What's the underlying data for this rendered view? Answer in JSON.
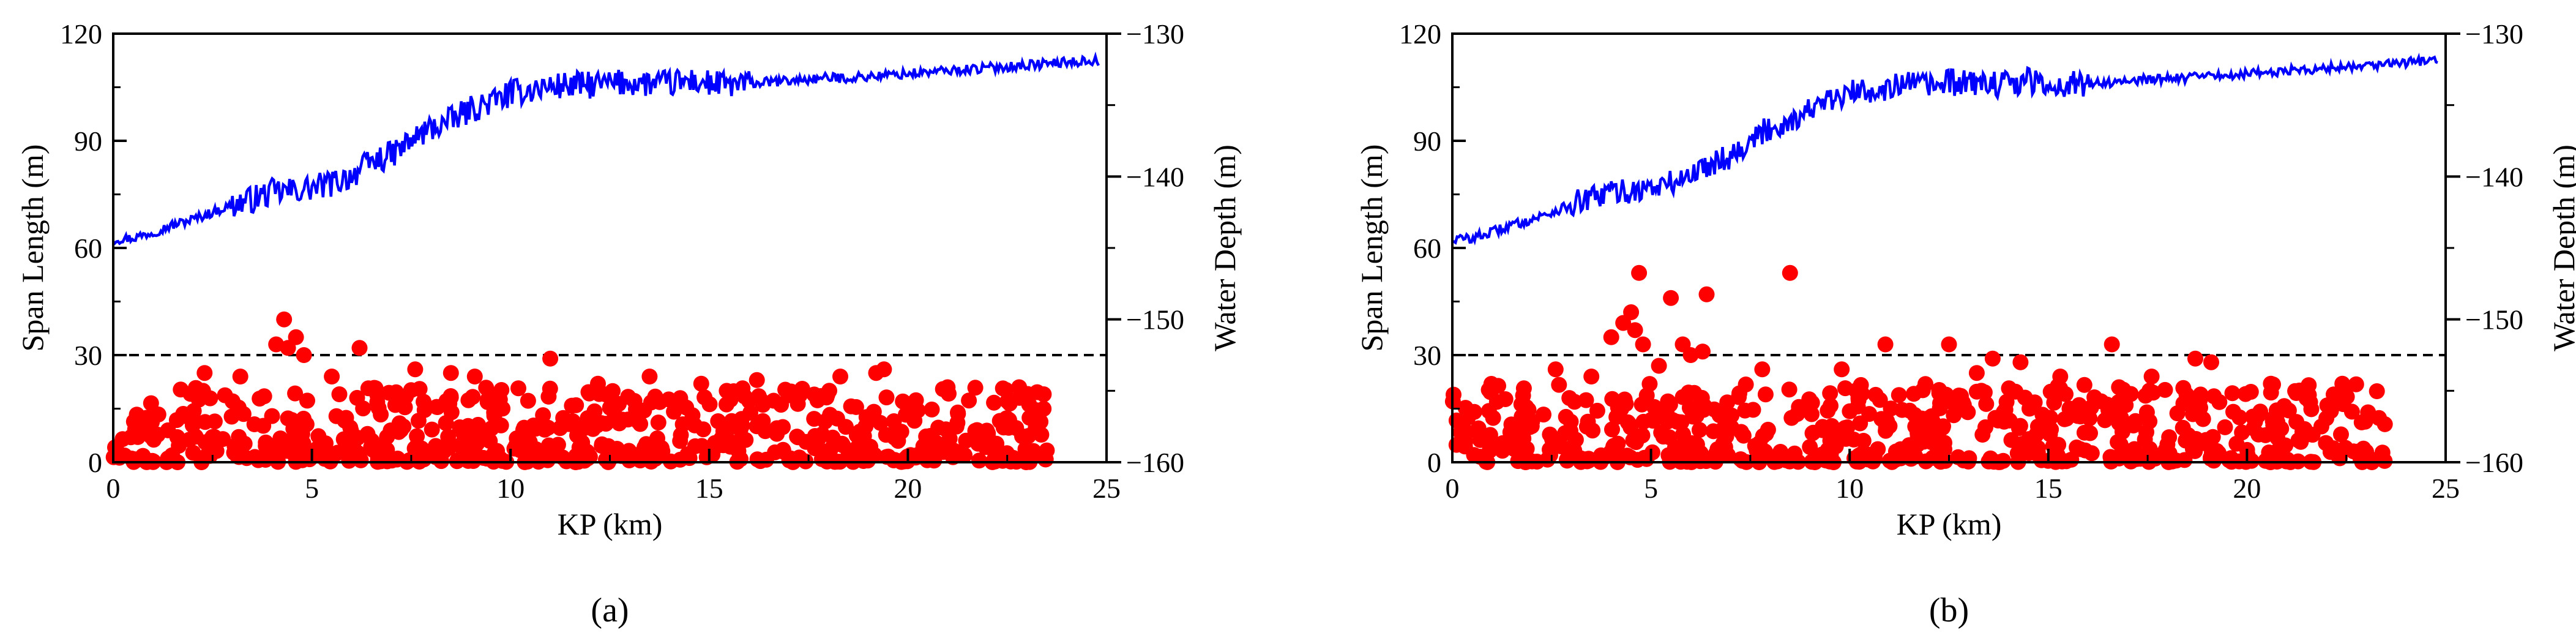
{
  "chart_data": [
    {
      "type": "scatter",
      "panel_label": "(a)",
      "xlabel": "KP (km)",
      "ylabel": "Span Length (m)",
      "y2label": "Water Depth (m)",
      "xlim": [
        0,
        25
      ],
      "ylim": [
        0,
        120
      ],
      "y2lim": [
        -160,
        -130
      ],
      "xticks": [
        "0",
        "5",
        "10",
        "15",
        "20",
        "25"
      ],
      "yticks": [
        "0",
        "30",
        "60",
        "90",
        "120"
      ],
      "y2ticks": [
        "−160",
        "−150",
        "−140",
        "−130"
      ],
      "reference_line": {
        "y": 30,
        "style": "dashed",
        "color": "#000000"
      },
      "series": [
        {
          "kind": "line",
          "axis": "right",
          "color": "#0000ff",
          "x": [
            0,
            0.5,
            1,
            1.5,
            2,
            2.5,
            3,
            3.5,
            4,
            4.5,
            5,
            5.5,
            6,
            6.5,
            7,
            7.5,
            8,
            8.5,
            9,
            9.5,
            10,
            10.5,
            11,
            11.5,
            12,
            12.5,
            13,
            13.5,
            14,
            14.5,
            15,
            15.5,
            16,
            16.5,
            17,
            17.5,
            18,
            18.5,
            19,
            19.5,
            20,
            20.5,
            21,
            21.5,
            22,
            22.5,
            23,
            23.5,
            24,
            24.5,
            24.8
          ],
          "y": [
            -144.4,
            -144.3,
            -143.9,
            -143.4,
            -143,
            -142.5,
            -142,
            -141.6,
            -141.1,
            -141,
            -140.8,
            -140.5,
            -139.9,
            -139,
            -138.5,
            -137.5,
            -136.6,
            -136.1,
            -135.3,
            -134.8,
            -134.2,
            -133.9,
            -133.7,
            -133.6,
            -133.6,
            -133.5,
            -133.4,
            -133.5,
            -133.5,
            -133.3,
            -133.5,
            -133.6,
            -133.5,
            -133.4,
            -133.3,
            -133.2,
            -133.1,
            -133.1,
            -133.0,
            -132.9,
            -132.8,
            -132.7,
            -132.6,
            -132.5,
            -132.4,
            -132.3,
            -132.2,
            -132.1,
            -132.0,
            -131.9,
            -131.9
          ],
          "noise": 1.2
        },
        {
          "kind": "scatter",
          "axis": "left",
          "color": "#ff0000",
          "bulk_count": 620,
          "bulk_x_range": [
            0,
            23.5
          ],
          "bulk_y_max": 21,
          "seed": 11,
          "points": [
            [
              4.3,
              40
            ],
            [
              4.1,
              33
            ],
            [
              4.6,
              35
            ],
            [
              4.4,
              32
            ],
            [
              4.8,
              30
            ],
            [
              6.2,
              32
            ],
            [
              11,
              29
            ],
            [
              2.3,
              25
            ],
            [
              3.2,
              24
            ],
            [
              7.6,
              26
            ],
            [
              8.5,
              25
            ],
            [
              9.1,
              24
            ],
            [
              13.5,
              24
            ],
            [
              16.2,
              23
            ],
            [
              18.3,
              24
            ],
            [
              19.2,
              25
            ],
            [
              19.4,
              26
            ],
            [
              5.5,
              24
            ],
            [
              12.2,
              22
            ],
            [
              14.8,
              22
            ],
            [
              21.0,
              21
            ],
            [
              22.8,
              21
            ]
          ]
        }
      ]
    },
    {
      "type": "scatter",
      "panel_label": "(b)",
      "xlabel": "KP (km)",
      "ylabel": "Span Length (m)",
      "y2label": "Water Depth (m)",
      "xlim": [
        0,
        25
      ],
      "ylim": [
        0,
        120
      ],
      "y2lim": [
        -160,
        -130
      ],
      "xticks": [
        "0",
        "5",
        "10",
        "15",
        "20",
        "25"
      ],
      "yticks": [
        "0",
        "30",
        "60",
        "90",
        "120"
      ],
      "y2ticks": [
        "−160",
        "−150",
        "−140",
        "−130"
      ],
      "reference_line": {
        "y": 30,
        "style": "dashed",
        "color": "#000000"
      },
      "series": [
        {
          "kind": "line",
          "axis": "right",
          "color": "#0000ff",
          "x": [
            0,
            0.5,
            1,
            1.5,
            2,
            2.5,
            3,
            3.5,
            4,
            4.5,
            5,
            5.5,
            6,
            6.5,
            7,
            7.5,
            8,
            8.5,
            9,
            9.5,
            10,
            10.5,
            11,
            11.5,
            12,
            12.5,
            13,
            13.5,
            14,
            14.5,
            15,
            15.5,
            16,
            16.5,
            17,
            17.5,
            18,
            18.5,
            19,
            19.5,
            20,
            20.5,
            21,
            21.5,
            22,
            22.5,
            23,
            23.5,
            24,
            24.5,
            24.8
          ],
          "y": [
            -144.4,
            -144.3,
            -143.9,
            -143.4,
            -143,
            -142.5,
            -142,
            -141.6,
            -141.1,
            -141,
            -140.8,
            -140.5,
            -139.9,
            -139,
            -138.5,
            -137.5,
            -136.6,
            -136.1,
            -135.3,
            -134.8,
            -134.2,
            -133.9,
            -133.7,
            -133.6,
            -133.6,
            -133.5,
            -133.4,
            -133.5,
            -133.5,
            -133.3,
            -133.5,
            -133.6,
            -133.5,
            -133.4,
            -133.3,
            -133.2,
            -133.1,
            -133.1,
            -133.0,
            -132.9,
            -132.8,
            -132.7,
            -132.6,
            -132.5,
            -132.4,
            -132.3,
            -132.2,
            -132.1,
            -132.0,
            -131.9,
            -131.9
          ],
          "noise": 1.2
        },
        {
          "kind": "scatter",
          "axis": "left",
          "color": "#ff0000",
          "bulk_count": 620,
          "bulk_x_range": [
            0,
            23.5
          ],
          "bulk_y_max": 22,
          "seed": 23,
          "points": [
            [
              4.7,
              53
            ],
            [
              8.5,
              53
            ],
            [
              6.4,
              47
            ],
            [
              5.5,
              46
            ],
            [
              4.5,
              42
            ],
            [
              4.0,
              35
            ],
            [
              4.6,
              37
            ],
            [
              4.3,
              39
            ],
            [
              4.8,
              33
            ],
            [
              5.2,
              27
            ],
            [
              5.8,
              33
            ],
            [
              6.0,
              30
            ],
            [
              6.3,
              31
            ],
            [
              10.9,
              33
            ],
            [
              12.5,
              33
            ],
            [
              16.6,
              33
            ],
            [
              13.6,
              29
            ],
            [
              14.3,
              28
            ],
            [
              18.7,
              29
            ],
            [
              19.1,
              28
            ],
            [
              2.6,
              26
            ],
            [
              7.8,
              26
            ],
            [
              9.8,
              26
            ],
            [
              13.2,
              25
            ],
            [
              15.3,
              24
            ],
            [
              17.6,
              24
            ],
            [
              3.5,
              24
            ],
            [
              20.6,
              22
            ],
            [
              22.4,
              22
            ]
          ]
        }
      ]
    }
  ]
}
